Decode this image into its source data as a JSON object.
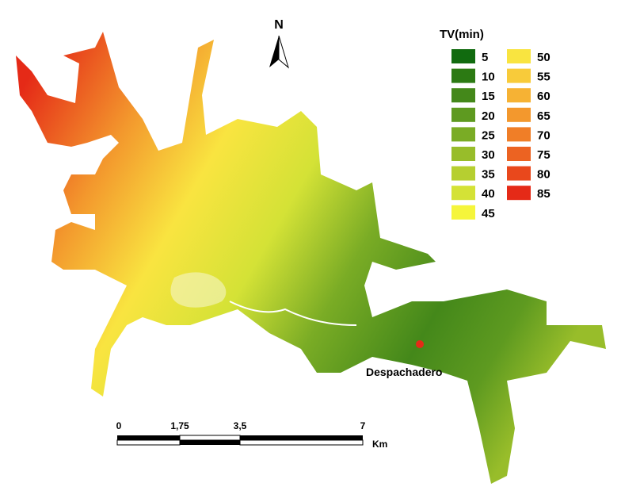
{
  "north_label": "N",
  "legend": {
    "title": "TV(min)",
    "items": [
      {
        "label": 5,
        "color": "#116b0f"
      },
      {
        "label": 10,
        "color": "#2c7a13"
      },
      {
        "label": 15,
        "color": "#44881a"
      },
      {
        "label": 20,
        "color": "#5e9a20"
      },
      {
        "label": 25,
        "color": "#7aac25"
      },
      {
        "label": 30,
        "color": "#98bd2a"
      },
      {
        "label": 35,
        "color": "#b6cf30"
      },
      {
        "label": 40,
        "color": "#d4e236"
      },
      {
        "label": 45,
        "color": "#f5f53b"
      },
      {
        "label": 50,
        "color": "#f9e440"
      },
      {
        "label": 55,
        "color": "#f8cb3a"
      },
      {
        "label": 60,
        "color": "#f6b234"
      },
      {
        "label": 65,
        "color": "#f3982d"
      },
      {
        "label": 70,
        "color": "#f07e27"
      },
      {
        "label": 75,
        "color": "#ec6322"
      },
      {
        "label": 80,
        "color": "#e9481c"
      },
      {
        "label": 85,
        "color": "#e52a17"
      }
    ]
  },
  "scale_bar": {
    "labels": [
      "0",
      "1,75",
      "3,5",
      "7"
    ],
    "unit": "Km"
  },
  "place_label": "Despachadero"
}
